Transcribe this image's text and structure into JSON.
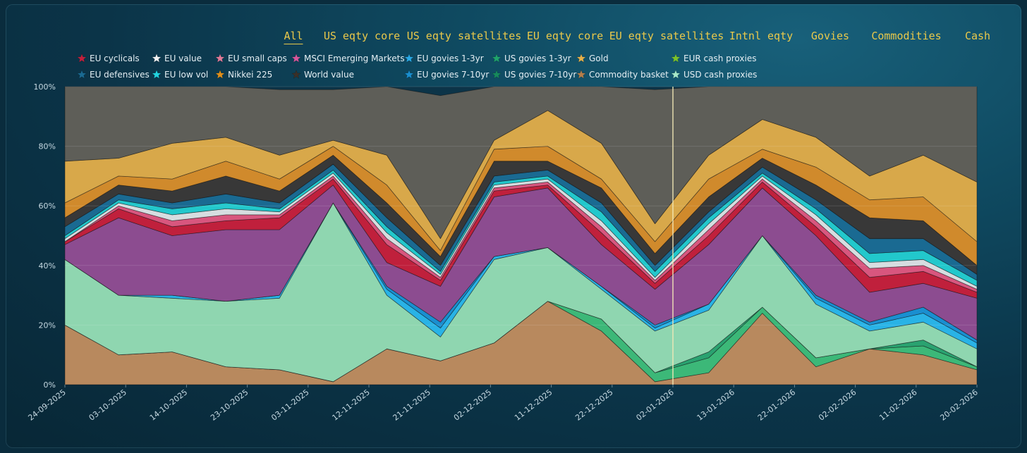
{
  "tabs": [
    "All",
    "US eqty core",
    "US eqty satellites",
    "EU eqty core",
    "EU eqty satellites",
    "Intnl eqty",
    "Govies",
    "Commodities",
    "Cash"
  ],
  "active_tab": "All",
  "chart_data": {
    "type": "area",
    "stacked": true,
    "normalized": true,
    "title": "",
    "xlabel": "",
    "ylabel": "",
    "ylim": [
      0,
      100
    ],
    "y_ticks": [
      "0%",
      "20%",
      "40%",
      "60%",
      "80%",
      "100%"
    ],
    "x_ticks": [
      "24-09-2025",
      "03-10-2025",
      "14-10-2025",
      "23-10-2025",
      "03-11-2025",
      "12-11-2025",
      "21-11-2025",
      "02-12-2025",
      "11-12-2025",
      "22-12-2025",
      "02-01-2026",
      "13-01-2026",
      "22-01-2026",
      "02-02-2026",
      "11-02-2026",
      "20-02-2026"
    ],
    "highlight_x": "02-01-2026",
    "legend_position": "top-left",
    "series": [
      {
        "name": "Commodity basket",
        "color": "#b8895e",
        "values": [
          20,
          10,
          11,
          6,
          5,
          1,
          12,
          8,
          14,
          28,
          18,
          1,
          4,
          24,
          6,
          12,
          10,
          5
        ]
      },
      {
        "name": "US govies 1-3yr",
        "color": "#3cb878",
        "values": [
          0,
          0,
          0,
          0,
          0,
          0,
          0,
          0,
          0,
          0,
          4,
          3,
          5,
          2,
          3,
          0,
          3,
          1
        ]
      },
      {
        "name": "US govies 7-10yr",
        "color": "#2aa270",
        "values": [
          0,
          0,
          0,
          0,
          0,
          0,
          0,
          0,
          0,
          0,
          0,
          0,
          2,
          0,
          0,
          0,
          2,
          0
        ]
      },
      {
        "name": "USD cash proxies",
        "color": "#8fd6b0",
        "values": [
          22,
          20,
          18,
          22,
          24,
          60,
          18,
          8,
          28,
          18,
          10,
          14,
          14,
          24,
          18,
          6,
          6,
          6
        ]
      },
      {
        "name": "EU govies 1-3yr",
        "color": "#29b3e6",
        "values": [
          0,
          0,
          1,
          0,
          1,
          0,
          2,
          3,
          1,
          0,
          1,
          1,
          2,
          0,
          2,
          2,
          3,
          2
        ]
      },
      {
        "name": "EU govies 7-10yr",
        "color": "#1a8fd0",
        "values": [
          0,
          0,
          0,
          0,
          0,
          0,
          1,
          2,
          0,
          0,
          0,
          1,
          0,
          0,
          1,
          1,
          2,
          1
        ]
      },
      {
        "name": "MSCI Emerging Markets",
        "color": "#8c4c90",
        "values": [
          5,
          26,
          20,
          24,
          22,
          6,
          8,
          12,
          20,
          20,
          14,
          12,
          20,
          16,
          20,
          10,
          8,
          14
        ]
      },
      {
        "name": "EU cyclicals",
        "color": "#c0203c",
        "values": [
          1,
          3,
          3,
          3,
          4,
          2,
          6,
          2,
          2,
          1,
          4,
          2,
          3,
          2,
          3,
          5,
          4,
          2
        ]
      },
      {
        "name": "EU small caps",
        "color": "#d8567e",
        "values": [
          0,
          1,
          2,
          2,
          1,
          1,
          2,
          1,
          1,
          1,
          2,
          1,
          2,
          1,
          2,
          3,
          2,
          1
        ]
      },
      {
        "name": "EU value",
        "color": "#d6dde0",
        "values": [
          1,
          1,
          2,
          2,
          1,
          1,
          2,
          1,
          1,
          1,
          2,
          1,
          2,
          1,
          2,
          2,
          2,
          1
        ]
      },
      {
        "name": "EU low vol",
        "color": "#22c8cc",
        "values": [
          1,
          1,
          2,
          2,
          1,
          1,
          2,
          1,
          1,
          1,
          3,
          2,
          2,
          1,
          2,
          3,
          3,
          2
        ]
      },
      {
        "name": "EU defensives",
        "color": "#1a6a92",
        "values": [
          3,
          2,
          2,
          3,
          2,
          2,
          3,
          2,
          2,
          2,
          3,
          2,
          2,
          2,
          3,
          5,
          4,
          2
        ]
      },
      {
        "name": "World value",
        "color": "#383838",
        "values": [
          3,
          3,
          4,
          6,
          4,
          3,
          5,
          3,
          5,
          3,
          5,
          4,
          5,
          3,
          5,
          7,
          6,
          3
        ]
      },
      {
        "name": "Nikkei 225",
        "color": "#d08a2c",
        "values": [
          5,
          3,
          4,
          5,
          4,
          3,
          6,
          2,
          4,
          5,
          3,
          4,
          6,
          3,
          6,
          6,
          8,
          8
        ]
      },
      {
        "name": "Gold",
        "color": "#d8a84a",
        "values": [
          14,
          6,
          12,
          8,
          8,
          2,
          10,
          4,
          3,
          12,
          12,
          6,
          8,
          10,
          10,
          8,
          14,
          20
        ]
      },
      {
        "name": "Cash",
        "color": "#5e5e58",
        "values": [
          25,
          24,
          19,
          17,
          22,
          17,
          23,
          48,
          18,
          8,
          19,
          45,
          27,
          11,
          17,
          30,
          23,
          32
        ]
      }
    ],
    "legend": [
      {
        "name": "EU cyclicals",
        "color": "#c0203c"
      },
      {
        "name": "EU value",
        "color": "#f2f2f2"
      },
      {
        "name": "EU small caps",
        "color": "#e07a98"
      },
      {
        "name": "MSCI Emerging Markets",
        "color": "#d8569a"
      },
      {
        "name": "EU govies 1-3yr",
        "color": "#29a9e6"
      },
      {
        "name": "US govies 1-3yr",
        "color": "#1fa36b"
      },
      {
        "name": "Gold",
        "color": "#e5b04a"
      },
      {
        "name": "EUR cash proxies",
        "color": "#7cc22a"
      },
      {
        "name": "EU defensives",
        "color": "#1a6a92"
      },
      {
        "name": "EU low vol",
        "color": "#22d4e0"
      },
      {
        "name": "Nikkei 225",
        "color": "#e08f1a"
      },
      {
        "name": "World value",
        "color": "#3a3028"
      },
      {
        "name": "EU govies 7-10yr",
        "color": "#1a8fd0"
      },
      {
        "name": "US govies 7-10yr",
        "color": "#178a5c"
      },
      {
        "name": "Commodity basket",
        "color": "#b57e4a"
      },
      {
        "name": "USD cash proxies",
        "color": "#a7e8c8"
      }
    ]
  }
}
